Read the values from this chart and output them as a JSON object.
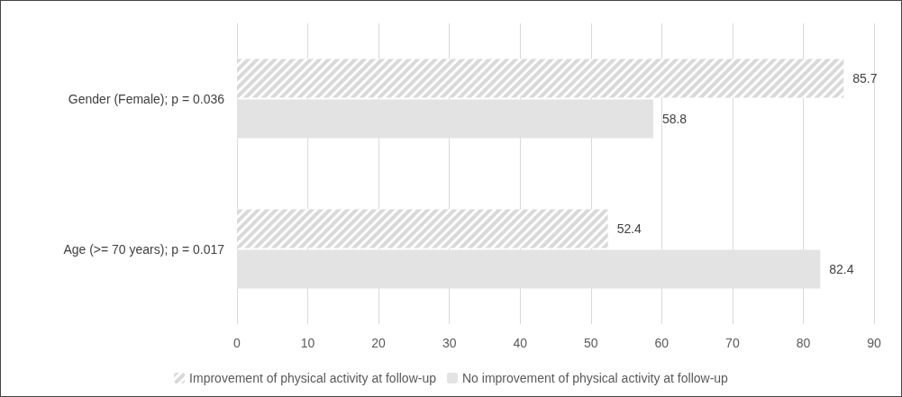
{
  "chart_data": {
    "type": "bar",
    "orientation": "horizontal",
    "categories": [
      "Gender (Female); p = 0.036",
      "Age (>= 70 years); p = 0.017"
    ],
    "series": [
      {
        "name": "Improvement of physical activity at follow-up",
        "color": "#d9d9d9",
        "values": [
          85.7,
          52.4
        ]
      },
      {
        "name": "No improvement of physical activity at follow-up",
        "color": "#e3e3e3",
        "values": [
          58.8,
          82.4
        ]
      }
    ],
    "xlim": [
      0,
      90
    ],
    "xticks": [
      0,
      10,
      20,
      30,
      40,
      50,
      60,
      70,
      80,
      90
    ],
    "grid": "x",
    "legend": "bottom",
    "data_labels": true
  }
}
